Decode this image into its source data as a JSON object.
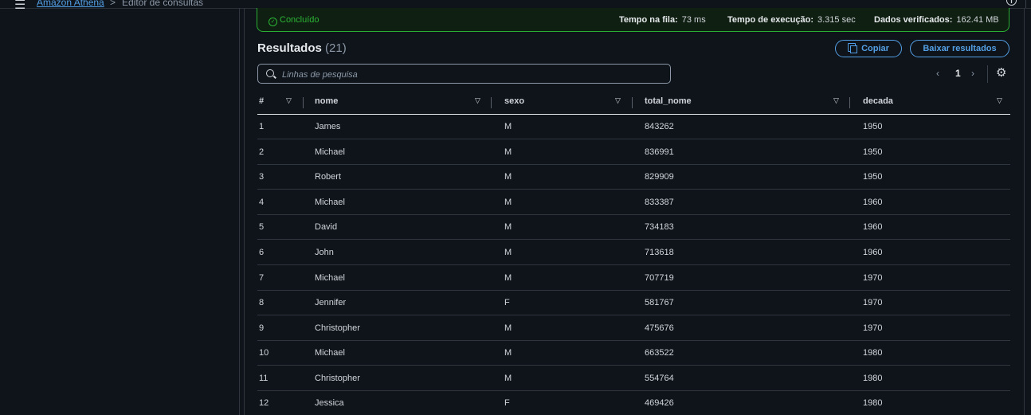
{
  "breadcrumb": {
    "link": "Amazon Athena",
    "separator": ">",
    "current": "Editor de consultas"
  },
  "status": {
    "label": "Concluído",
    "queue_label": "Tempo na fila:",
    "queue_value": "73 ms",
    "exec_label": "Tempo de execução:",
    "exec_value": "3.315 sec",
    "scanned_label": "Dados verificados:",
    "scanned_value": "162.41 MB"
  },
  "results": {
    "title": "Resultados",
    "count": "(21)",
    "copy_label": "Copiar",
    "download_label": "Baixar resultados",
    "search_placeholder": "Linhas de pesquisa",
    "page": "1"
  },
  "columns": [
    "#",
    "nome",
    "sexo",
    "total_nome",
    "decada"
  ],
  "rows": [
    [
      "1",
      "James",
      "M",
      "843262",
      "1950"
    ],
    [
      "2",
      "Michael",
      "M",
      "836991",
      "1950"
    ],
    [
      "3",
      "Robert",
      "M",
      "829909",
      "1950"
    ],
    [
      "4",
      "Michael",
      "M",
      "833387",
      "1960"
    ],
    [
      "5",
      "David",
      "M",
      "734183",
      "1960"
    ],
    [
      "6",
      "John",
      "M",
      "713618",
      "1960"
    ],
    [
      "7",
      "Michael",
      "M",
      "707719",
      "1970"
    ],
    [
      "8",
      "Jennifer",
      "F",
      "581767",
      "1970"
    ],
    [
      "9",
      "Christopher",
      "M",
      "475676",
      "1970"
    ],
    [
      "10",
      "Michael",
      "M",
      "663522",
      "1980"
    ],
    [
      "11",
      "Christopher",
      "M",
      "554764",
      "1980"
    ],
    [
      "12",
      "Jessica",
      "F",
      "469426",
      "1980"
    ]
  ],
  "colors": {
    "success": "#2bb534",
    "link": "#539fe5",
    "background": "#0f141a"
  }
}
